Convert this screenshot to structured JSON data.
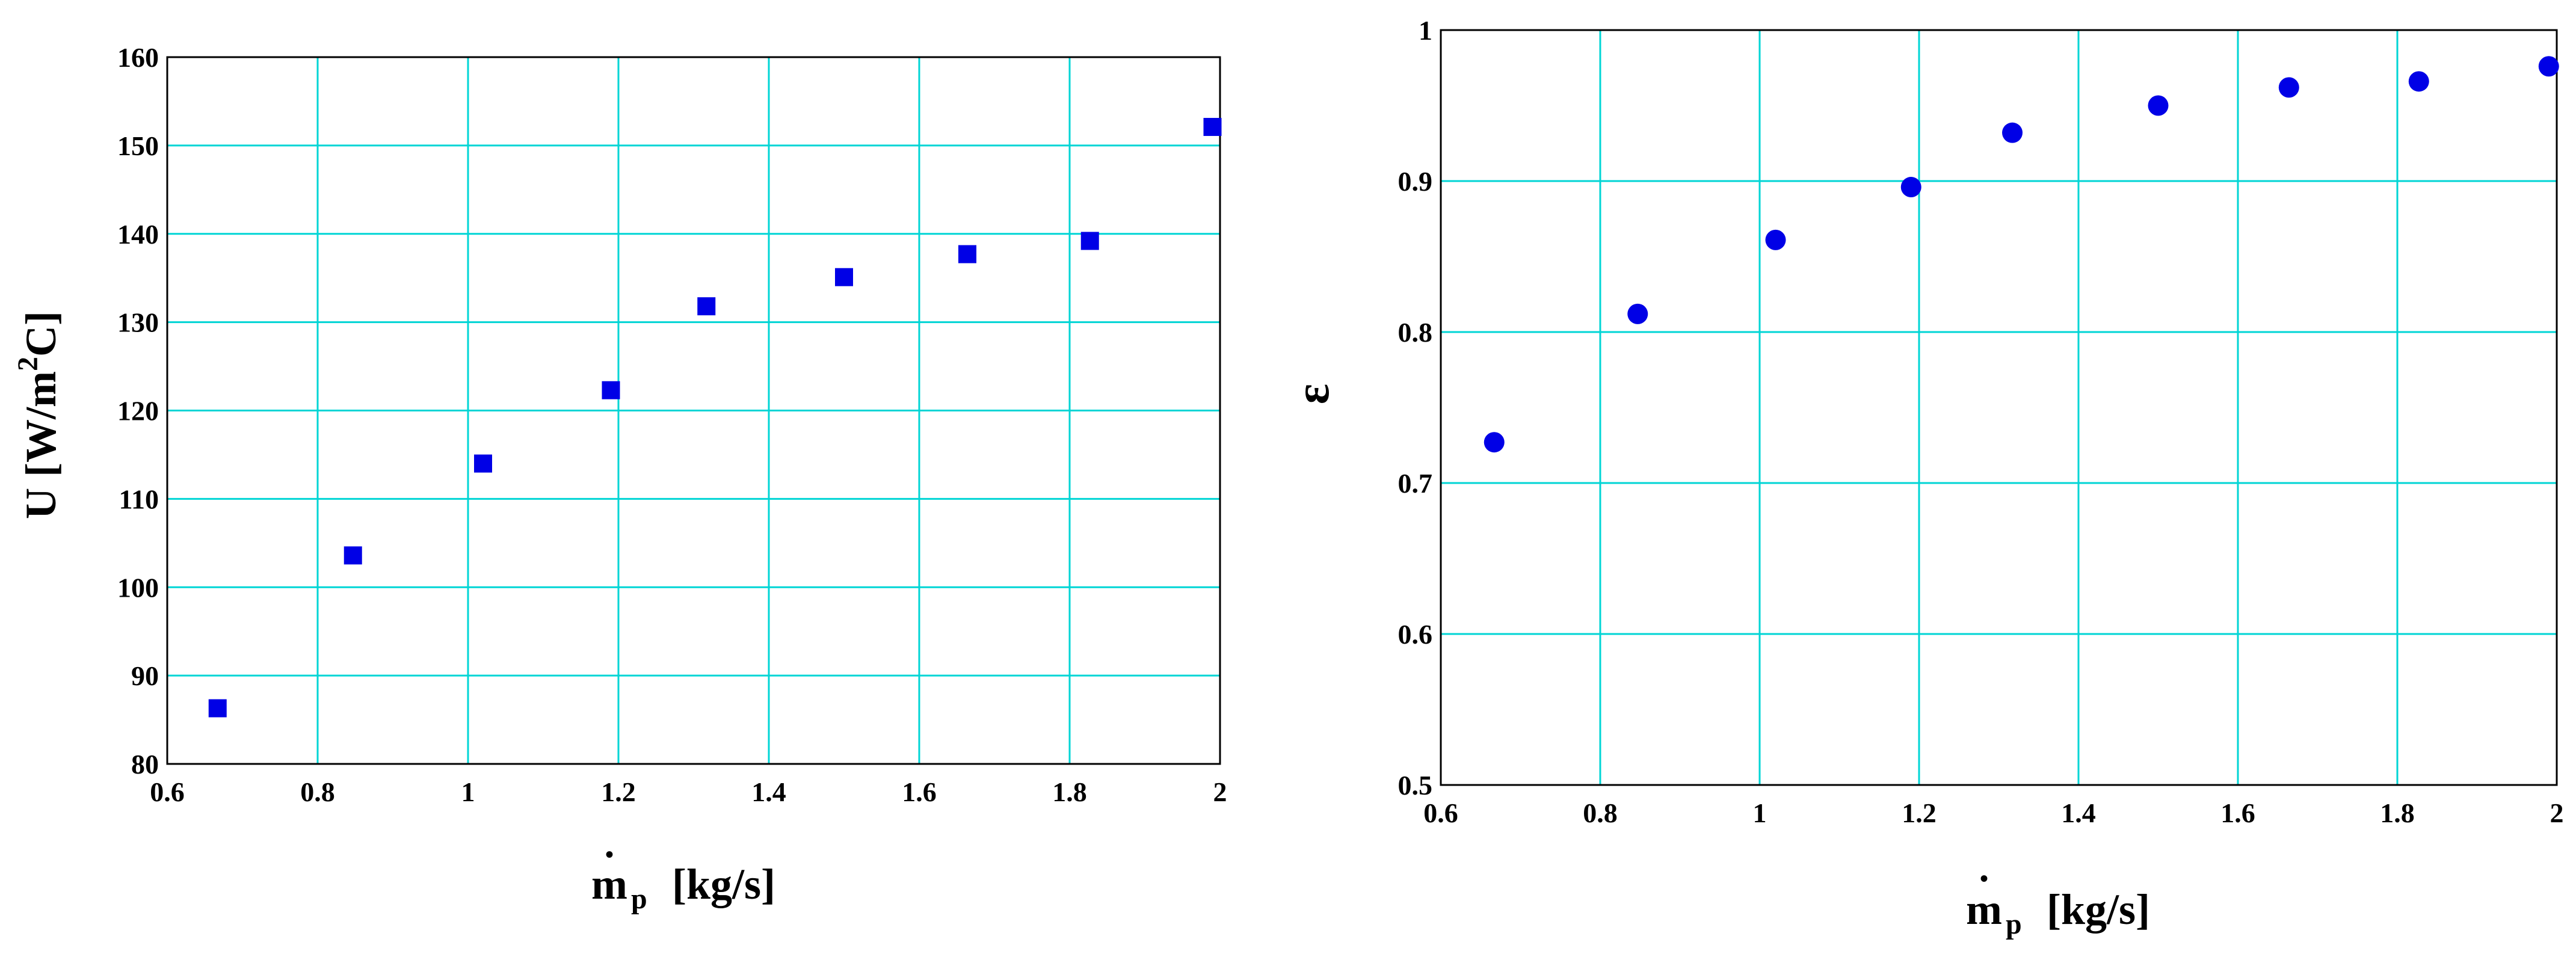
{
  "chart_data": [
    {
      "type": "scatter",
      "marker": "square",
      "xlabel": {
        "dot": "•",
        "symbol": "m",
        "subscript": "p",
        "unit": "[kg/s]"
      },
      "ylabel": {
        "prefix": "U  [W/m",
        "superscript": "2",
        "suffix": "C]"
      },
      "xlim": [
        0.6,
        2.0
      ],
      "ylim": [
        80,
        160
      ],
      "xticks": [
        "0.6",
        "0.8",
        "1",
        "1.2",
        "1.4",
        "1.6",
        "1.8",
        "2"
      ],
      "yticks": [
        "80",
        "90",
        "100",
        "110",
        "120",
        "130",
        "140",
        "150",
        "160"
      ],
      "grid": true,
      "grid_color": "#00d5d5",
      "marker_color": "#0000e6",
      "points": [
        {
          "x": 0.667,
          "y": 86.3
        },
        {
          "x": 0.847,
          "y": 103.6
        },
        {
          "x": 1.02,
          "y": 114.0
        },
        {
          "x": 1.19,
          "y": 122.3
        },
        {
          "x": 1.317,
          "y": 131.8
        },
        {
          "x": 1.5,
          "y": 135.1
        },
        {
          "x": 1.664,
          "y": 137.7
        },
        {
          "x": 1.827,
          "y": 139.2
        },
        {
          "x": 1.99,
          "y": 152.1
        }
      ]
    },
    {
      "type": "scatter",
      "marker": "circle",
      "xlabel": {
        "dot": "•",
        "symbol": "m",
        "subscript": "p",
        "unit": "[kg/s]"
      },
      "ylabel": {
        "text": "ε"
      },
      "xlim": [
        0.6,
        2.0
      ],
      "ylim": [
        0.5,
        1.0
      ],
      "xticks": [
        "0.6",
        "0.8",
        "1",
        "1.2",
        "1.4",
        "1.6",
        "1.8",
        "2"
      ],
      "yticks": [
        "0.5",
        "0.6",
        "0.7",
        "0.8",
        "0.9",
        "1"
      ],
      "grid": true,
      "grid_color": "#00d5d5",
      "marker_color": "#0000e6",
      "points": [
        {
          "x": 0.667,
          "y": 0.727
        },
        {
          "x": 0.847,
          "y": 0.812
        },
        {
          "x": 1.02,
          "y": 0.861
        },
        {
          "x": 1.19,
          "y": 0.896
        },
        {
          "x": 1.317,
          "y": 0.932
        },
        {
          "x": 1.5,
          "y": 0.95
        },
        {
          "x": 1.664,
          "y": 0.962
        },
        {
          "x": 1.827,
          "y": 0.966
        },
        {
          "x": 1.99,
          "y": 0.976
        }
      ]
    }
  ]
}
